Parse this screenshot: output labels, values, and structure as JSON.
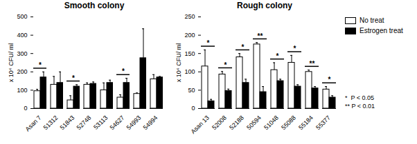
{
  "chart_data": [
    {
      "type": "bar",
      "title": "Smooth colony",
      "y_label": "x 10⁴ CFU/ ml",
      "categories": [
        "Asan 7",
        "51312",
        "51843",
        "52748",
        "53113",
        "54627",
        "54993",
        "54994"
      ],
      "series": [
        {
          "name": "No treat",
          "color": "#ffffff",
          "values": [
            95,
            130,
            45,
            130,
            100,
            60,
            80,
            160
          ],
          "errors": [
            10,
            45,
            25,
            10,
            40,
            15,
            5,
            25
          ]
        },
        {
          "name": "Estrogen treat",
          "color": "#000000",
          "values": [
            170,
            140,
            120,
            135,
            140,
            140,
            275,
            170
          ],
          "errors": [
            30,
            60,
            10,
            10,
            15,
            25,
            160,
            5
          ]
        }
      ],
      "significance": [
        "*",
        null,
        "*",
        null,
        null,
        "*",
        null,
        null
      ],
      "ylim": [
        0,
        500
      ],
      "yticks": [
        0,
        100,
        200,
        300,
        400,
        500
      ]
    },
    {
      "type": "bar",
      "title": "Rough colony",
      "y_label": "x 10⁴ CFU/ ml",
      "categories": [
        "Asan 13",
        "52008",
        "52188",
        "50594",
        "51048",
        "55088",
        "55184",
        "55377"
      ],
      "series": [
        {
          "name": "No treat",
          "color": "#ffffff",
          "values": [
            115,
            93,
            140,
            175,
            105,
            125,
            100,
            52
          ],
          "errors": [
            45,
            8,
            10,
            5,
            20,
            20,
            5,
            8
          ]
        },
        {
          "name": "Estrogen treat",
          "color": "#000000",
          "values": [
            20,
            48,
            70,
            45,
            75,
            60,
            55,
            30
          ],
          "errors": [
            5,
            5,
            10,
            15,
            5,
            5,
            5,
            5
          ]
        }
      ],
      "significance": [
        "*",
        "*",
        "*",
        "**",
        "*",
        "*",
        "**",
        "*"
      ],
      "ylim": [
        0,
        250
      ],
      "yticks": [
        0,
        50,
        100,
        150,
        200,
        250
      ],
      "legend": "right",
      "annotations": [
        "*  P < 0.05",
        "** P < 0.01"
      ]
    }
  ]
}
